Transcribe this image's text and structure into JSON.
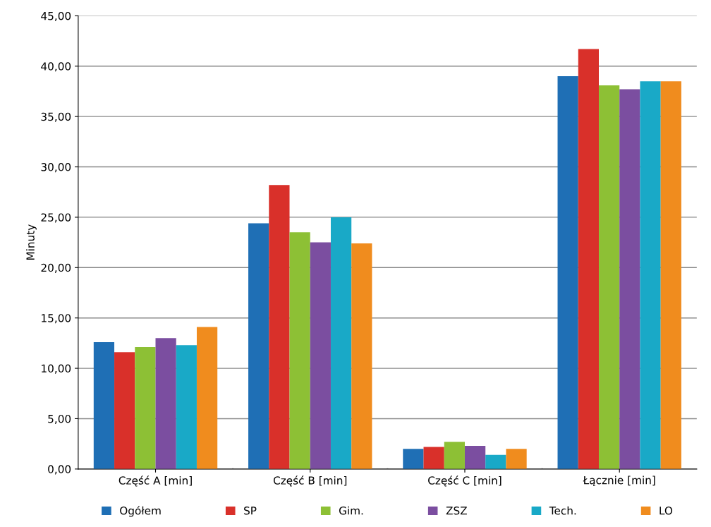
{
  "chart_data": {
    "type": "bar",
    "ylabel": "Minuty",
    "categories": [
      "Część A [min]",
      "Część B [min]",
      "Część C [min]",
      "Łącznie [min]"
    ],
    "series": [
      {
        "name": "Ogółem",
        "color": "#1f6fb5",
        "values": [
          12.6,
          24.4,
          2.0,
          39.0
        ]
      },
      {
        "name": "SP",
        "color": "#d9302a",
        "values": [
          11.6,
          28.2,
          2.2,
          41.7
        ]
      },
      {
        "name": "Gim.",
        "color": "#8dc035",
        "values": [
          12.1,
          23.5,
          2.7,
          38.1
        ]
      },
      {
        "name": "ZSZ",
        "color": "#7b4ea0",
        "values": [
          13.0,
          22.5,
          2.3,
          37.7
        ]
      },
      {
        "name": "Tech.",
        "color": "#19a9c7",
        "values": [
          12.3,
          25.0,
          1.4,
          38.5
        ]
      },
      {
        "name": "LO",
        "color": "#f08c1e",
        "values": [
          14.1,
          22.4,
          2.0,
          38.5
        ]
      }
    ],
    "ylim": [
      0,
      45
    ],
    "yticks": [
      {
        "value": 0,
        "label": "0,00"
      },
      {
        "value": 5,
        "label": "5,00"
      },
      {
        "value": 10,
        "label": "10,00"
      },
      {
        "value": 15,
        "label": "15,00"
      },
      {
        "value": 20,
        "label": "20,00"
      },
      {
        "value": 25,
        "label": "25,00"
      },
      {
        "value": 30,
        "label": "30,00"
      },
      {
        "value": 35,
        "label": "35,00"
      },
      {
        "value": 40,
        "label": "40,00"
      },
      {
        "value": 45,
        "label": "45,00"
      }
    ],
    "grid": "y",
    "legend": "bottom"
  }
}
